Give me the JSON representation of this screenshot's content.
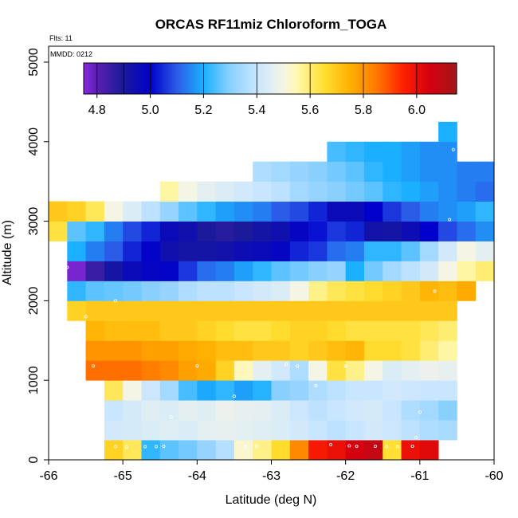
{
  "chart_data": {
    "type": "heatmap",
    "title": "ORCAS RF11miz Chloroform_TOGA",
    "xlabel": "Latitude (deg N)",
    "ylabel": "Altitude (m)",
    "xlim": [
      -66,
      -60
    ],
    "ylim": [
      0,
      5200
    ],
    "xticks": [
      -66,
      -65,
      -64,
      -63,
      -62,
      -61,
      -60
    ],
    "yticks": [
      0,
      1000,
      2000,
      3000,
      4000,
      5000
    ],
    "annotations": {
      "flights": "Flts: 11",
      "mmdd": "MMDD: 0212"
    },
    "colorbar": {
      "min": 4.75,
      "max": 6.15,
      "ticks": [
        4.8,
        5.0,
        5.2,
        5.4,
        5.6,
        5.8,
        6.0
      ],
      "divisions": [
        4.8,
        4.9,
        5.0,
        5.2,
        5.4,
        5.6,
        5.8,
        6.0
      ],
      "stops": [
        [
          4.75,
          "#8a2be2"
        ],
        [
          4.8,
          "#5a1fb0"
        ],
        [
          4.9,
          "#1a1a9a"
        ],
        [
          5.0,
          "#0000cc"
        ],
        [
          5.1,
          "#2b5ce8"
        ],
        [
          5.2,
          "#1ab0ff"
        ],
        [
          5.3,
          "#8ad0ff"
        ],
        [
          5.4,
          "#c8e6ff"
        ],
        [
          5.5,
          "#f5f5e6"
        ],
        [
          5.55,
          "#fff8b0"
        ],
        [
          5.65,
          "#ffe033"
        ],
        [
          5.75,
          "#ffb000"
        ],
        [
          5.85,
          "#ff7800"
        ],
        [
          5.95,
          "#ff2000"
        ],
        [
          6.05,
          "#d40010"
        ],
        [
          6.15,
          "#a01818"
        ]
      ]
    },
    "grid": {
      "lat_start": -65.25,
      "lat_step": 0.25,
      "alt_start": 0,
      "alt_step": 250,
      "rows": [
        {
          "alt": 0,
          "lat0": -65.25,
          "values": [
            5.68,
            5.62,
            5.22,
            5.26,
            5.28,
            5.32,
            5.37,
            5.52,
            5.58,
            5.66,
            5.82,
            5.97,
            6.0,
            6.05,
            6.08,
            5.65,
            6.0,
            6.02
          ]
        },
        {
          "alt": 250,
          "lat0": -65.25,
          "values": [
            5.42,
            5.43,
            5.44,
            5.45,
            5.44,
            5.46,
            5.47,
            5.46,
            5.45,
            5.44,
            5.42,
            5.4,
            5.38,
            5.4,
            5.42,
            5.41,
            5.38,
            5.36,
            5.35
          ]
        },
        {
          "alt": 500,
          "lat0": -65.25,
          "values": [
            5.4,
            5.43,
            5.45,
            5.44,
            5.46,
            5.45,
            5.48,
            5.47,
            5.46,
            5.44,
            5.41,
            5.38,
            5.4,
            5.42,
            5.43,
            5.4,
            5.36,
            5.34,
            5.3
          ]
        },
        {
          "alt": 750,
          "lat0": -65.25,
          "values": [
            5.62,
            5.5,
            5.41,
            5.34,
            5.24,
            5.19,
            5.22,
            5.18,
            5.21,
            5.3,
            5.32,
            5.36,
            5.38,
            5.4,
            5.4,
            5.42,
            5.41,
            5.4,
            5.4
          ]
        },
        {
          "alt": 1000,
          "lat0": -65.5,
          "values": [
            5.86,
            5.86,
            5.86,
            5.84,
            5.82,
            5.78,
            5.76,
            5.68,
            5.54,
            5.46,
            5.42,
            5.36,
            5.5,
            5.64,
            5.58,
            5.5,
            5.44,
            5.46,
            5.48,
            5.47
          ]
        },
        {
          "alt": 1250,
          "lat0": -65.5,
          "values": [
            5.8,
            5.8,
            5.8,
            5.78,
            5.78,
            5.76,
            5.75,
            5.72,
            5.72,
            5.7,
            5.7,
            5.68,
            5.7,
            5.72,
            5.74,
            5.66,
            5.66,
            5.64,
            5.6,
            5.56
          ]
        },
        {
          "alt": 1500,
          "lat0": -65.5,
          "values": [
            5.74,
            5.72,
            5.72,
            5.72,
            5.7,
            5.7,
            5.68,
            5.66,
            5.64,
            5.64,
            5.66,
            5.68,
            5.68,
            5.66,
            5.64,
            5.64,
            5.64,
            5.64,
            5.62,
            5.6
          ]
        },
        {
          "alt": 1750,
          "lat0": -65.75,
          "values": [
            5.68,
            5.7,
            5.7,
            5.7,
            5.7,
            5.7,
            5.7,
            5.7,
            5.7,
            5.7,
            5.7,
            5.7,
            5.7,
            5.7,
            5.7,
            5.7,
            5.7,
            5.7,
            5.7,
            5.7,
            5.7
          ]
        },
        {
          "alt": 2000,
          "lat0": -65.75,
          "values": [
            5.22,
            5.26,
            5.27,
            5.28,
            5.3,
            5.32,
            5.36,
            5.38,
            5.38,
            5.4,
            5.42,
            5.44,
            5.5,
            5.58,
            5.62,
            5.64,
            5.66,
            5.68,
            5.7,
            5.74,
            5.72,
            5.76
          ]
        },
        {
          "alt": 2250,
          "lat0": -65.75,
          "values": [
            4.77,
            4.85,
            4.92,
            4.96,
            4.98,
            4.99,
            5.06,
            5.12,
            5.14,
            5.18,
            5.22,
            5.26,
            5.28,
            5.3,
            5.32,
            5.2,
            5.28,
            5.34,
            5.38,
            5.42,
            5.5,
            5.56,
            5.6
          ]
        },
        {
          "alt": 2500,
          "lat0": -65.75,
          "values": [
            5.2,
            5.14,
            5.1,
            5.04,
            4.99,
            4.94,
            4.92,
            4.92,
            4.93,
            4.95,
            4.96,
            4.98,
            5.04,
            5.06,
            5.12,
            5.14,
            5.22,
            5.22,
            5.26,
            5.34,
            5.42,
            5.5,
            5.46
          ]
        },
        {
          "alt": 2750,
          "lat0": -66.0,
          "values": [
            5.64,
            5.26,
            5.22,
            5.14,
            5.08,
            5.04,
            4.96,
            4.94,
            4.9,
            4.88,
            4.9,
            4.92,
            4.94,
            4.98,
            5.02,
            5.06,
            5.04,
            4.93,
            4.92,
            4.95,
            5.0,
            5.08,
            5.12,
            5.16
          ]
        },
        {
          "alt": 3000,
          "lat0": -66.0,
          "values": [
            5.7,
            5.68,
            5.62,
            5.5,
            5.44,
            5.38,
            5.32,
            5.26,
            5.22,
            5.18,
            5.16,
            5.14,
            5.1,
            5.08,
            5.04,
            4.96,
            4.96,
            5.0,
            5.06,
            5.1,
            5.14,
            5.16,
            5.18,
            5.22
          ]
        },
        {
          "alt": 3250,
          "lat0": -64.5,
          "values": [
            5.56,
            5.5,
            5.46,
            5.44,
            5.42,
            5.4,
            5.38,
            5.34,
            5.32,
            5.3,
            5.28,
            5.26,
            5.22,
            5.2,
            5.18,
            5.16,
            5.14,
            5.12
          ]
        },
        {
          "alt": 3500,
          "lat0": -63.25,
          "values": [
            5.36,
            5.34,
            5.32,
            5.3,
            5.28,
            5.26,
            5.22,
            5.2,
            5.18,
            5.16,
            5.16,
            5.14,
            5.14
          ]
        },
        {
          "alt": 3750,
          "lat0": -62.25,
          "values": [
            5.24,
            5.22,
            5.2,
            5.2,
            5.18,
            5.16,
            5.16
          ]
        },
        {
          "alt": 4000,
          "lat0": -60.75,
          "values": [
            5.2
          ]
        }
      ]
    },
    "sample_points": [
      [
        -65.1,
        165
      ],
      [
        -64.95,
        160
      ],
      [
        -64.7,
        165
      ],
      [
        -64.55,
        165
      ],
      [
        -64.45,
        170
      ],
      [
        -63.35,
        165
      ],
      [
        -63.2,
        170
      ],
      [
        -62.2,
        190
      ],
      [
        -61.95,
        175
      ],
      [
        -61.85,
        170
      ],
      [
        -61.6,
        170
      ],
      [
        -61.45,
        165
      ],
      [
        -61.3,
        168
      ],
      [
        -61.1,
        170
      ],
      [
        -61.05,
        280
      ],
      [
        -65.3,
        500
      ],
      [
        -64.35,
        540
      ],
      [
        -63.5,
        800
      ],
      [
        -62.8,
        1200
      ],
      [
        -62.65,
        1180
      ],
      [
        -62.4,
        930
      ],
      [
        -62.0,
        1180
      ],
      [
        -65.4,
        1180
      ],
      [
        -64.0,
        1180
      ],
      [
        -61.0,
        600
      ],
      [
        -65.5,
        1800
      ],
      [
        -65.75,
        2420
      ],
      [
        -60.8,
        2120
      ],
      [
        -60.6,
        3020
      ],
      [
        -60.55,
        3900
      ],
      [
        -65.1,
        2000
      ]
    ]
  }
}
